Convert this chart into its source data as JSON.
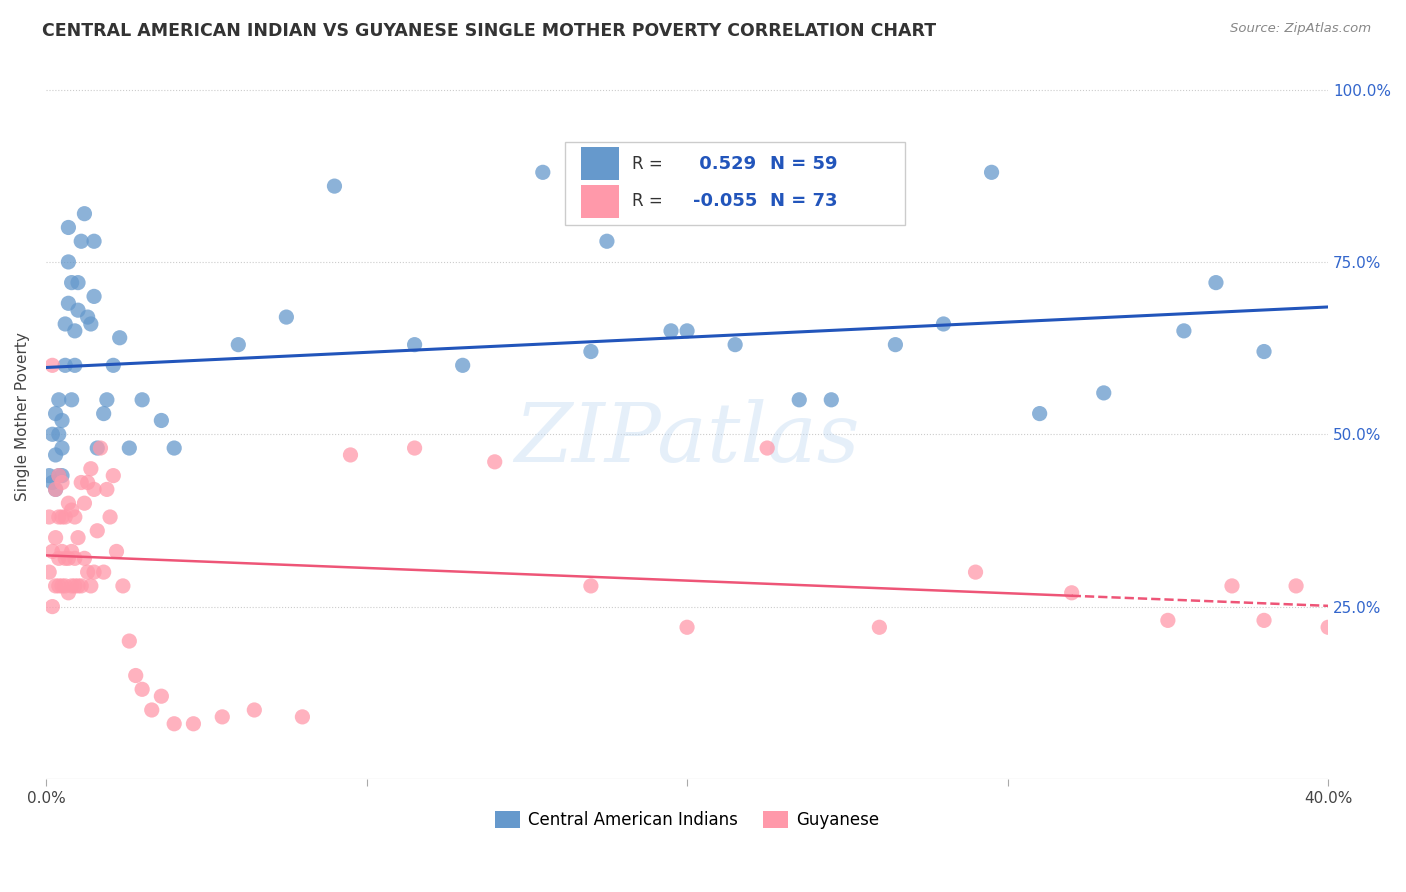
{
  "title": "CENTRAL AMERICAN INDIAN VS GUYANESE SINGLE MOTHER POVERTY CORRELATION CHART",
  "source": "Source: ZipAtlas.com",
  "ylabel": "Single Mother Poverty",
  "yticks_labels": [
    "25.0%",
    "50.0%",
    "75.0%",
    "100.0%"
  ],
  "ytick_vals": [
    0.25,
    0.5,
    0.75,
    1.0
  ],
  "xlim": [
    0.0,
    0.4
  ],
  "ylim": [
    0.0,
    1.05
  ],
  "legend_labels": [
    "Central American Indians",
    "Guyanese"
  ],
  "r_blue": "0.529",
  "n_blue": "59",
  "r_pink": "-0.055",
  "n_pink": "73",
  "blue_color": "#6699CC",
  "pink_color": "#FF99AA",
  "blue_line_color": "#2255BB",
  "pink_line_color": "#EE5577",
  "watermark": "ZIPatlas",
  "blue_scatter_x": [
    0.001,
    0.002,
    0.002,
    0.003,
    0.003,
    0.003,
    0.004,
    0.004,
    0.004,
    0.005,
    0.005,
    0.005,
    0.006,
    0.006,
    0.007,
    0.007,
    0.007,
    0.008,
    0.008,
    0.009,
    0.009,
    0.01,
    0.01,
    0.011,
    0.012,
    0.013,
    0.014,
    0.015,
    0.015,
    0.016,
    0.018,
    0.019,
    0.021,
    0.023,
    0.026,
    0.03,
    0.036,
    0.04,
    0.06,
    0.075,
    0.09,
    0.115,
    0.13,
    0.155,
    0.175,
    0.195,
    0.215,
    0.235,
    0.265,
    0.28,
    0.31,
    0.33,
    0.355,
    0.365,
    0.38,
    0.295,
    0.245,
    0.2,
    0.17
  ],
  "blue_scatter_y": [
    0.44,
    0.43,
    0.5,
    0.42,
    0.47,
    0.53,
    0.44,
    0.5,
    0.55,
    0.44,
    0.48,
    0.52,
    0.6,
    0.66,
    0.75,
    0.8,
    0.69,
    0.72,
    0.55,
    0.65,
    0.6,
    0.68,
    0.72,
    0.78,
    0.82,
    0.67,
    0.66,
    0.7,
    0.78,
    0.48,
    0.53,
    0.55,
    0.6,
    0.64,
    0.48,
    0.55,
    0.52,
    0.48,
    0.63,
    0.67,
    0.86,
    0.63,
    0.6,
    0.88,
    0.78,
    0.65,
    0.63,
    0.55,
    0.63,
    0.66,
    0.53,
    0.56,
    0.65,
    0.72,
    0.62,
    0.88,
    0.55,
    0.65,
    0.62
  ],
  "pink_scatter_x": [
    0.001,
    0.001,
    0.002,
    0.002,
    0.002,
    0.003,
    0.003,
    0.003,
    0.004,
    0.004,
    0.004,
    0.004,
    0.005,
    0.005,
    0.005,
    0.005,
    0.006,
    0.006,
    0.006,
    0.007,
    0.007,
    0.007,
    0.008,
    0.008,
    0.008,
    0.009,
    0.009,
    0.009,
    0.01,
    0.01,
    0.011,
    0.011,
    0.012,
    0.012,
    0.013,
    0.013,
    0.014,
    0.014,
    0.015,
    0.015,
    0.016,
    0.017,
    0.018,
    0.019,
    0.02,
    0.021,
    0.022,
    0.024,
    0.026,
    0.028,
    0.03,
    0.033,
    0.036,
    0.04,
    0.046,
    0.055,
    0.065,
    0.08,
    0.095,
    0.115,
    0.14,
    0.17,
    0.2,
    0.225,
    0.26,
    0.29,
    0.32,
    0.35,
    0.37,
    0.39,
    0.4,
    0.405,
    0.38
  ],
  "pink_scatter_y": [
    0.3,
    0.38,
    0.25,
    0.33,
    0.6,
    0.28,
    0.35,
    0.42,
    0.28,
    0.32,
    0.38,
    0.44,
    0.28,
    0.33,
    0.38,
    0.43,
    0.28,
    0.32,
    0.38,
    0.27,
    0.32,
    0.4,
    0.28,
    0.33,
    0.39,
    0.28,
    0.32,
    0.38,
    0.28,
    0.35,
    0.28,
    0.43,
    0.32,
    0.4,
    0.3,
    0.43,
    0.28,
    0.45,
    0.3,
    0.42,
    0.36,
    0.48,
    0.3,
    0.42,
    0.38,
    0.44,
    0.33,
    0.28,
    0.2,
    0.15,
    0.13,
    0.1,
    0.12,
    0.08,
    0.08,
    0.09,
    0.1,
    0.09,
    0.47,
    0.48,
    0.46,
    0.28,
    0.22,
    0.48,
    0.22,
    0.3,
    0.27,
    0.23,
    0.28,
    0.28,
    0.22,
    0.27,
    0.23
  ]
}
